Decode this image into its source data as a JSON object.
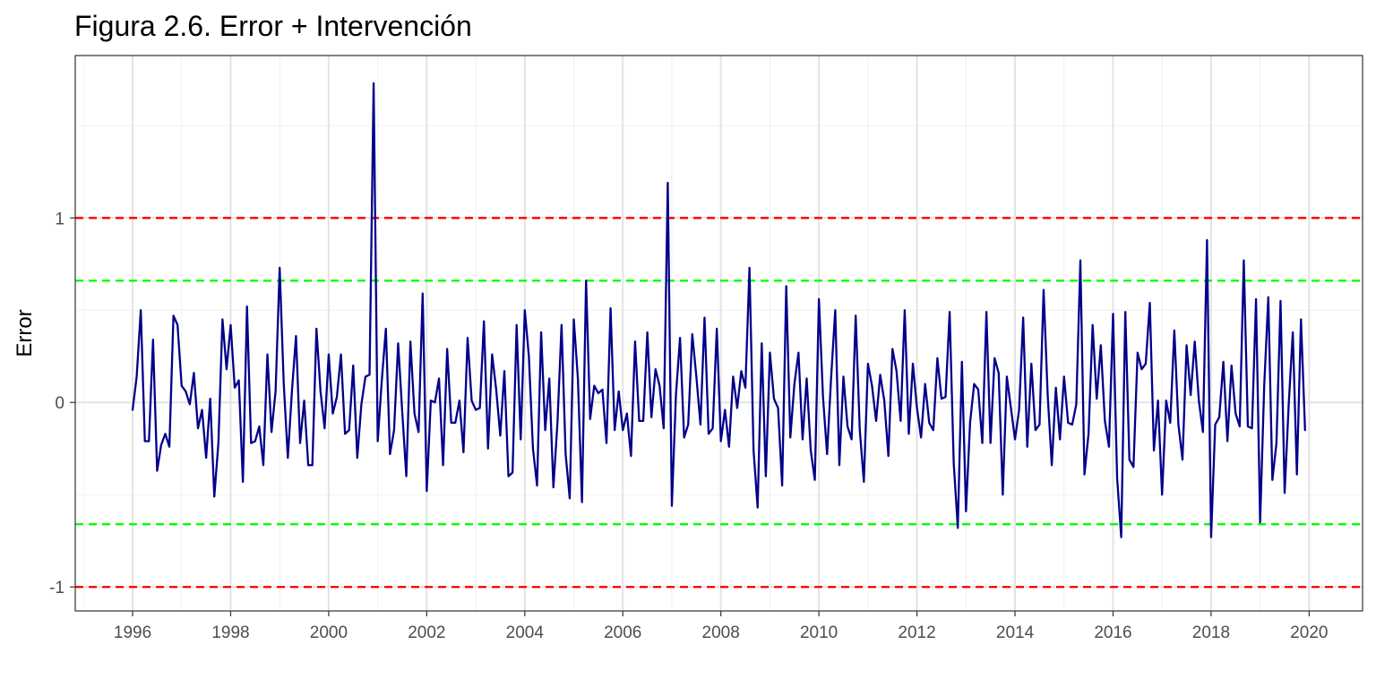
{
  "chart_data": {
    "type": "line",
    "title": "Figura 2.6. Error + Intervención",
    "xlabel": "",
    "ylabel": "Error",
    "x_range": [
      1996.0,
      2019.917
    ],
    "xlim": [
      1994.83,
      2021.09
    ],
    "ylim": [
      -1.13,
      1.88
    ],
    "x_ticks": [
      "1996",
      "1998",
      "2000",
      "2002",
      "2004",
      "2006",
      "2008",
      "2010",
      "2012",
      "2014",
      "2016",
      "2018",
      "2020"
    ],
    "x_tick_values": [
      1996,
      1998,
      2000,
      2002,
      2004,
      2006,
      2008,
      2010,
      2012,
      2014,
      2016,
      2018,
      2020
    ],
    "y_ticks": [
      "-1",
      "0",
      "1"
    ],
    "y_tick_values": [
      -1,
      0,
      1
    ],
    "frequency": "monthly",
    "grid": true,
    "legend": "none",
    "reference_lines": [
      {
        "value": 1,
        "color": "#ff0000",
        "style": "dashed"
      },
      {
        "value": -1,
        "color": "#ff0000",
        "style": "dashed"
      },
      {
        "value": 0.66,
        "color": "#00ff00",
        "style": "dashed"
      },
      {
        "value": -0.66,
        "color": "#00ff00",
        "style": "dashed"
      }
    ],
    "series": [
      {
        "color": "#00008b",
        "values": [
          -0.04,
          0.14,
          0.5,
          -0.21,
          -0.21,
          0.34,
          -0.37,
          -0.23,
          -0.17,
          -0.24,
          0.47,
          0.42,
          0.09,
          0.06,
          -0.01,
          0.16,
          -0.14,
          -0.04,
          -0.3,
          0.02,
          -0.51,
          -0.22,
          0.45,
          0.18,
          0.42,
          0.08,
          0.12,
          -0.43,
          0.52,
          -0.22,
          -0.21,
          -0.13,
          -0.34,
          0.26,
          -0.16,
          0.06,
          0.73,
          0.1,
          -0.3,
          0.06,
          0.36,
          -0.22,
          0.01,
          -0.34,
          -0.34,
          0.4,
          0.06,
          -0.14,
          0.26,
          -0.06,
          0.03,
          0.26,
          -0.17,
          -0.15,
          0.2,
          -0.3,
          -0.01,
          0.14,
          0.15,
          1.73,
          -0.21,
          0.12,
          0.4,
          -0.28,
          -0.15,
          0.32,
          -0.05,
          -0.4,
          0.33,
          -0.06,
          -0.16,
          0.59,
          -0.48,
          0.01,
          0.0,
          0.13,
          -0.34,
          0.29,
          -0.11,
          -0.11,
          0.01,
          -0.27,
          0.35,
          0.01,
          -0.04,
          -0.03,
          0.44,
          -0.25,
          0.26,
          0.07,
          -0.18,
          0.17,
          -0.4,
          -0.38,
          0.42,
          -0.2,
          0.5,
          0.25,
          -0.25,
          -0.45,
          0.38,
          -0.15,
          0.13,
          -0.46,
          -0.11,
          0.42,
          -0.28,
          -0.52,
          0.45,
          0.13,
          -0.54,
          0.66,
          -0.09,
          0.09,
          0.05,
          0.07,
          -0.22,
          0.51,
          -0.15,
          0.06,
          -0.15,
          -0.06,
          -0.29,
          0.33,
          -0.1,
          -0.1,
          0.38,
          -0.08,
          0.18,
          0.09,
          -0.14,
          1.19,
          -0.56,
          0.04,
          0.35,
          -0.19,
          -0.12,
          0.37,
          0.14,
          -0.12,
          0.46,
          -0.17,
          -0.14,
          0.4,
          -0.21,
          -0.04,
          -0.24,
          0.14,
          -0.03,
          0.17,
          0.08,
          0.73,
          -0.26,
          -0.57,
          0.32,
          -0.4,
          0.27,
          0.02,
          -0.03,
          -0.45,
          0.63,
          -0.19,
          0.1,
          0.27,
          -0.2,
          0.13,
          -0.26,
          -0.42,
          0.56,
          0.03,
          -0.28,
          0.14,
          0.5,
          -0.34,
          0.14,
          -0.13,
          -0.2,
          0.47,
          -0.15,
          -0.43,
          0.21,
          0.09,
          -0.1,
          0.15,
          0.01,
          -0.29,
          0.29,
          0.17,
          -0.1,
          0.5,
          -0.17,
          0.21,
          -0.03,
          -0.19,
          0.1,
          -0.11,
          -0.15,
          0.24,
          0.02,
          0.03,
          0.49,
          -0.33,
          -0.68,
          0.22,
          -0.59,
          -0.11,
          0.1,
          0.07,
          -0.22,
          0.49,
          -0.22,
          0.24,
          0.16,
          -0.5,
          0.14,
          -0.03,
          -0.2,
          -0.04,
          0.46,
          -0.24,
          0.21,
          -0.15,
          -0.12,
          0.61,
          0.04,
          -0.34,
          0.08,
          -0.2,
          0.14,
          -0.11,
          -0.12,
          -0.01,
          0.77,
          -0.39,
          -0.17,
          0.42,
          0.02,
          0.31,
          -0.1,
          -0.24,
          0.48,
          -0.41,
          -0.73,
          0.49,
          -0.31,
          -0.35,
          0.27,
          0.18,
          0.21,
          0.54,
          -0.26,
          0.01,
          -0.5,
          0.01,
          -0.11,
          0.39,
          -0.12,
          -0.31,
          0.31,
          0.04,
          0.33,
          0.01,
          -0.16,
          0.88,
          -0.73,
          -0.12,
          -0.08,
          0.22,
          -0.21,
          0.2,
          -0.06,
          -0.13,
          0.77,
          -0.13,
          -0.14,
          0.56,
          -0.65,
          0.09,
          0.57,
          -0.42,
          -0.22,
          0.55,
          -0.49,
          -0.01,
          0.38,
          -0.39,
          0.45,
          -0.15
        ]
      }
    ]
  }
}
